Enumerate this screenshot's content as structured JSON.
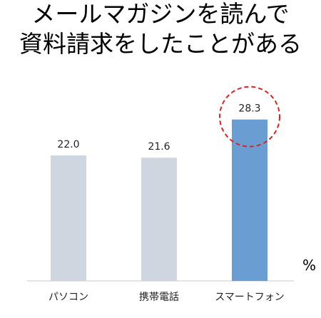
{
  "chart_data": {
    "type": "bar",
    "title_lines": [
      "メールマガジンを読んで",
      "資料請求をしたことがある"
    ],
    "categories": [
      "パソコン",
      "携帯電話",
      "スマートフォン"
    ],
    "values": [
      22.0,
      21.6,
      28.3
    ],
    "value_labels": [
      "22.0",
      "21.6",
      "28.3"
    ],
    "unit": "%",
    "ylim": [
      0,
      40
    ],
    "grid": false,
    "legend": "none",
    "bar_colors": [
      "#d0d6e0",
      "#d0d6e0",
      "#6a9ed3"
    ],
    "highlight": {
      "category": "スマートフォン",
      "style": "dashed-circle",
      "color": "#e0201e"
    }
  }
}
